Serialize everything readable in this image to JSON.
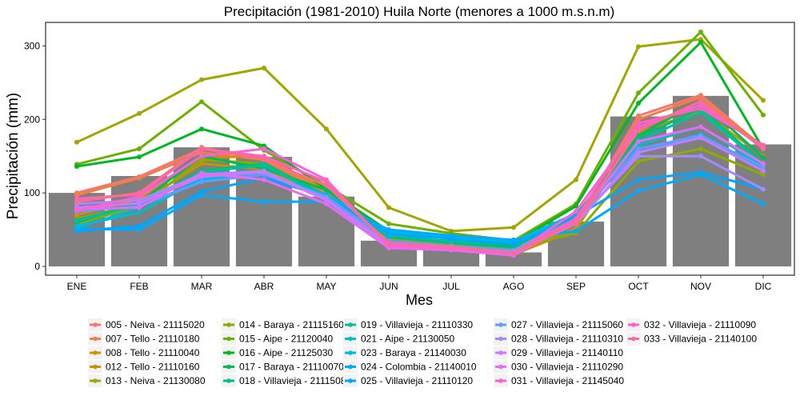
{
  "chart_data": {
    "type": "line",
    "title": "Precipitación (1981-2010) Huila Norte (menores a 1000 m.s.n.m)",
    "xlabel": "Mes",
    "ylabel": "Precipitación (mm)",
    "ylim": [
      -12,
      332
    ],
    "yticks": [
      0,
      100,
      200,
      300
    ],
    "grid": false,
    "legend_position": "bottom",
    "categories": [
      "ENE",
      "FEB",
      "MAR",
      "ABR",
      "MAY",
      "JUN",
      "JUL",
      "AGO",
      "SEP",
      "OCT",
      "NOV",
      "DIC"
    ],
    "bar_values": [
      100,
      123,
      162,
      149,
      95,
      35,
      25,
      19,
      61,
      204,
      232,
      166
    ],
    "bar_color": "#7f7f7f",
    "series": [
      {
        "name": "005 - Neiva - 21115020",
        "color": "#F8766D",
        "values": [
          100,
          122,
          160,
          147,
          100,
          35,
          28,
          18,
          60,
          205,
          233,
          162
        ]
      },
      {
        "name": "007 - Tello - 21110180",
        "color": "#EF7F49",
        "values": [
          97,
          120,
          155,
          145,
          98,
          34,
          27,
          18,
          58,
          200,
          230,
          160
        ]
      },
      {
        "name": "008 - Tello - 21110040",
        "color": "#D99000",
        "values": [
          70,
          92,
          148,
          150,
          104,
          33,
          24,
          17,
          52,
          190,
          220,
          165
        ]
      },
      {
        "name": "012 - Tello - 21110160",
        "color": "#BF9800",
        "values": [
          65,
          85,
          140,
          132,
          93,
          32,
          24,
          16,
          50,
          182,
          212,
          150
        ]
      },
      {
        "name": "013 - Neiva - 21130080",
        "color": "#A3A500",
        "values": [
          169,
          208,
          254,
          270,
          187,
          80,
          48,
          53,
          118,
          299,
          309,
          226
        ]
      },
      {
        "name": "014 - Baraya - 21115160",
        "color": "#8FAA00",
        "values": [
          58,
          82,
          145,
          140,
          97,
          38,
          30,
          25,
          45,
          143,
          160,
          125
        ]
      },
      {
        "name": "015 - Aipe - 21120040",
        "color": "#6BB100",
        "values": [
          139,
          160,
          224,
          158,
          110,
          58,
          45,
          35,
          85,
          236,
          319,
          206
        ]
      },
      {
        "name": "016 - Aipe - 21125030",
        "color": "#00B81F",
        "values": [
          136,
          149,
          187,
          164,
          105,
          48,
          37,
          32,
          82,
          222,
          305,
          160
        ]
      },
      {
        "name": "017 - Baraya - 21110070",
        "color": "#00BC56",
        "values": [
          60,
          87,
          150,
          133,
          104,
          42,
          33,
          28,
          70,
          178,
          225,
          148
        ]
      },
      {
        "name": "018 - Villavieja - 21115080",
        "color": "#00BF7D",
        "values": [
          63,
          85,
          130,
          140,
          96,
          40,
          32,
          26,
          68,
          175,
          215,
          140
        ]
      },
      {
        "name": "019 - Villavieja - 21110330",
        "color": "#00C19F",
        "values": [
          62,
          84,
          128,
          138,
          93,
          42,
          34,
          31,
          67,
          170,
          210,
          138
        ]
      },
      {
        "name": "021 - Aipe - 21130050",
        "color": "#00BFC4",
        "values": [
          55,
          73,
          120,
          130,
          90,
          45,
          38,
          33,
          70,
          165,
          190,
          136
        ]
      },
      {
        "name": "023 - Baraya - 21140030",
        "color": "#00B8E5",
        "values": [
          52,
          80,
          118,
          125,
          98,
          47,
          40,
          34,
          72,
          155,
          180,
          130
        ]
      },
      {
        "name": "024 - Colombia - 21140010",
        "color": "#00ABFD",
        "values": [
          51,
          50,
          97,
          88,
          88,
          50,
          42,
          36,
          48,
          103,
          125,
          85
        ]
      },
      {
        "name": "025 - Villavieja - 21110120",
        "color": "#00A5FF",
        "values": [
          48,
          55,
          102,
          120,
          95,
          44,
          38,
          30,
          68,
          118,
          128,
          105
        ]
      },
      {
        "name": "027 - Villavieja - 21115060",
        "color": "#619CFF",
        "values": [
          75,
          82,
          115,
          125,
          95,
          35,
          28,
          22,
          65,
          160,
          178,
          135
        ]
      },
      {
        "name": "028 - Villavieja - 21110310",
        "color": "#A58AFF",
        "values": [
          85,
          90,
          125,
          130,
          92,
          30,
          25,
          20,
          60,
          150,
          150,
          105
        ]
      },
      {
        "name": "029 - Villavieja - 21140110",
        "color": "#C77CFF",
        "values": [
          80,
          86,
          122,
          128,
          90,
          27,
          23,
          18,
          58,
          155,
          175,
          130
        ]
      },
      {
        "name": "030 - Villavieja - 21110290",
        "color": "#E76BF3",
        "values": [
          78,
          80,
          127,
          118,
          85,
          25,
          22,
          15,
          62,
          170,
          190,
          140
        ]
      },
      {
        "name": "031 - Villavieja - 21145040",
        "color": "#FA62DB",
        "values": [
          76,
          95,
          150,
          160,
          118,
          28,
          24,
          17,
          75,
          190,
          220,
          162
        ]
      },
      {
        "name": "032 - Villavieja - 21110090",
        "color": "#FF62BC",
        "values": [
          92,
          98,
          160,
          150,
          115,
          30,
          26,
          18,
          65,
          195,
          215,
          165
        ]
      },
      {
        "name": "033 - Villavieja - 21140100",
        "color": "#FF6C91",
        "values": [
          88,
          100,
          162,
          145,
          110,
          32,
          27,
          18,
          60,
          185,
          225,
          160
        ]
      }
    ]
  }
}
